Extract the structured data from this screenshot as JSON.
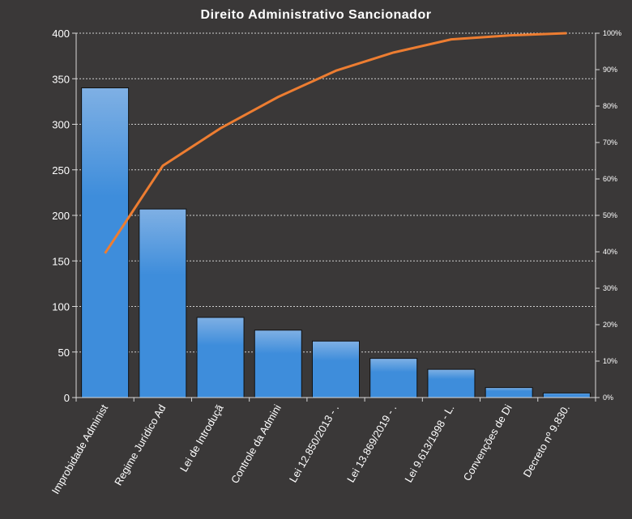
{
  "chart_data": {
    "type": "bar",
    "title": "Direito Administrativo Sancionador",
    "categories": [
      "Improbidade Administ",
      "Regime Jurídico Ad",
      "Lei de Introduçã",
      "Controle da Admini",
      "Lei 12.850/2013 - .",
      "Lei 13.869/2019 - .",
      "Lei 9.613/1998 - L.",
      "Convenções de Di",
      "Decreto nº 9.830."
    ],
    "series": [
      {
        "type": "bar",
        "axis": "left",
        "values": [
          340,
          207,
          88,
          74,
          62,
          43,
          31,
          11,
          5
        ]
      },
      {
        "type": "line",
        "axis": "right",
        "values": [
          39.6,
          63.6,
          73.9,
          82.5,
          89.7,
          94.7,
          98.3,
          99.4,
          100
        ]
      }
    ],
    "ylim": [
      0,
      400
    ],
    "yticks": [
      "0",
      "50",
      "100",
      "150",
      "200",
      "250",
      "300",
      "350",
      "400"
    ],
    "y2lim": [
      0,
      100
    ],
    "y2ticks": [
      "0%",
      "10%",
      "20%",
      "30%",
      "40%",
      "50%",
      "60%",
      "70%",
      "80%",
      "90%",
      "100%"
    ],
    "grid": true,
    "legend": "none",
    "colors": {
      "background": "#3a3838",
      "bar_top": "#7fb0e4",
      "bar": "#3e8ddb",
      "line": "#ed7d31",
      "grid": "#cfcfcf",
      "text": "#ffffff"
    }
  }
}
